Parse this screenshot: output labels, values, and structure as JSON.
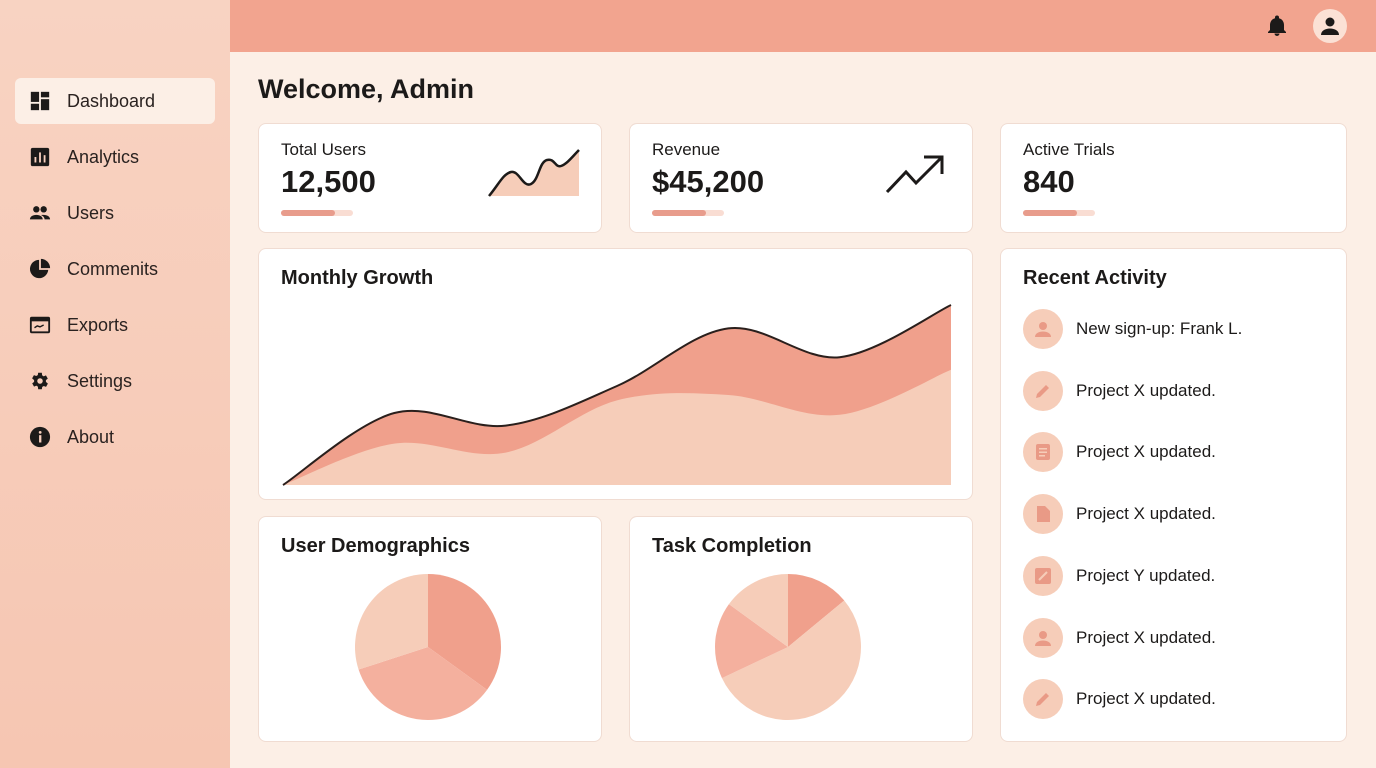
{
  "sidebar": {
    "items": [
      {
        "label": "Dashboard",
        "icon": "dashboard-icon",
        "active": true
      },
      {
        "label": "Analytics",
        "icon": "bar-chart-icon"
      },
      {
        "label": "Users",
        "icon": "users-icon"
      },
      {
        "label": "Commenits",
        "icon": "pie-chart-icon"
      },
      {
        "label": "Exports",
        "icon": "export-icon"
      },
      {
        "label": "Settings",
        "icon": "gear-icon"
      },
      {
        "label": "About",
        "icon": "info-icon"
      }
    ]
  },
  "topbar": {
    "icons": [
      "bell-icon",
      "user-avatar-icon"
    ]
  },
  "main": {
    "title": "Welcome, Admin",
    "stats": [
      {
        "label": "Total Users",
        "value": "12,500",
        "progress": 0.75
      },
      {
        "label": "Revenue",
        "value": "$45,200",
        "progress": 0.75
      },
      {
        "label": "Active Trials",
        "value": "840",
        "progress": 0.75
      }
    ],
    "growth_title": "Monthly Growth",
    "demographics_title": "User Demographics",
    "tasks_title": "Task Completion",
    "activity": {
      "title": "Recent Activity",
      "items": [
        {
          "text": "New sign-up: Frank L.",
          "icon": "user-icon"
        },
        {
          "text": "Project X updated.",
          "icon": "pencil-icon"
        },
        {
          "text": "Project X updated.",
          "icon": "document-icon"
        },
        {
          "text": "Project X updated.",
          "icon": "file-icon"
        },
        {
          "text": "Project Y updated.",
          "icon": "edit-icon"
        },
        {
          "text": "Project X updated.",
          "icon": "user-icon"
        },
        {
          "text": "Project X updated.",
          "icon": "pencil-icon"
        }
      ]
    }
  },
  "colors": {
    "accent": "#f2a48f",
    "dark": "#f0a08c",
    "mid": "#f4b09e",
    "light": "#f6cdb9"
  },
  "chart_data": [
    {
      "type": "area",
      "title": "Monthly Growth",
      "x": [
        0,
        1,
        2,
        3,
        4,
        5,
        6
      ],
      "series": [
        {
          "values": [
            0,
            40,
            33,
            55,
            87,
            71,
            100
          ]
        },
        {
          "values": [
            0,
            23,
            18,
            47,
            50,
            39,
            64
          ]
        }
      ],
      "ylim": [
        0,
        100
      ],
      "grid": false
    },
    {
      "type": "pie",
      "title": "User Demographics",
      "values": [
        35,
        35,
        30
      ]
    },
    {
      "type": "pie",
      "title": "Task Completion",
      "values": [
        14,
        54,
        17,
        15
      ]
    }
  ]
}
